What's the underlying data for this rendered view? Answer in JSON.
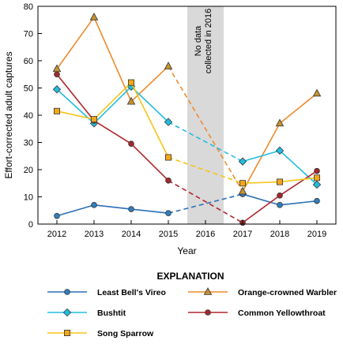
{
  "chart_data": {
    "type": "line",
    "xlabel": "Year",
    "ylabel": "Effort-corrected adult captures",
    "x": [
      2012,
      2013,
      2014,
      2015,
      2016,
      2017,
      2018,
      2019
    ],
    "x_tick_labels": [
      "2012",
      "2013",
      "2014",
      "2015",
      "2016",
      "2017",
      "2018",
      "2019"
    ],
    "ylim": [
      0,
      80
    ],
    "y_ticks": [
      0,
      10,
      20,
      30,
      40,
      50,
      60,
      70,
      80
    ],
    "y_tick_labels": [
      "0",
      "10",
      "20",
      "30",
      "40",
      "50",
      "60",
      "70",
      "80"
    ],
    "grid": false,
    "no_data_year": 2016,
    "no_data_note": [
      "No data",
      "collected in 2016"
    ],
    "legend_title": "EXPLANATION",
    "series": [
      {
        "name": "Least Bell's Vireo",
        "marker": "circle",
        "color": "#2a6fb5",
        "fill": "#2f7fbf",
        "values": [
          3,
          7,
          5.5,
          4,
          null,
          11,
          7,
          8.5
        ]
      },
      {
        "name": "Orange-crowned Warbler",
        "marker": "triangle",
        "color": "#ee8a2a",
        "fill": "#c7922f",
        "values": [
          57,
          76,
          45,
          58,
          null,
          12,
          37,
          48
        ]
      },
      {
        "name": "Bushtit",
        "marker": "diamond",
        "color": "#22bde0",
        "fill": "#22bde0",
        "values": [
          49.5,
          37,
          50.5,
          37.5,
          null,
          23,
          27,
          14.5
        ]
      },
      {
        "name": "Common Yellowthroat",
        "marker": "circle",
        "color": "#b0262c",
        "fill": "#a3282c",
        "values": [
          55,
          38,
          29.5,
          16,
          null,
          0.5,
          10.5,
          19.5
        ]
      },
      {
        "name": "Song Sparrow",
        "marker": "square",
        "color": "#f5c518",
        "fill": "#f2a71b",
        "values": [
          41.5,
          38.5,
          52,
          24.5,
          null,
          15,
          15.5,
          17
        ]
      }
    ]
  }
}
